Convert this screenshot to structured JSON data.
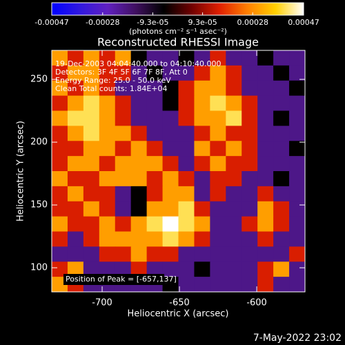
{
  "chart_data": {
    "type": "heatmap",
    "title": "Reconstructed RHESSI Image",
    "x_label": "Heliocentric X (arcsec)",
    "y_label": "Heliocentric Y (arcsec)",
    "xlim": [
      -732.6,
      -568.8
    ],
    "ylim": [
      80.8,
      273.1
    ],
    "xticks": [
      -700,
      -650,
      -600
    ],
    "yticks": [
      100,
      150,
      200,
      250
    ],
    "colorbar": {
      "label": "(photons cm⁻² s⁻¹ asec⁻²)",
      "clim": [
        -0.00047,
        0.00047
      ],
      "ticks": [
        -0.00047,
        -0.00028,
        {
          "value": -9.3e-05,
          "label": "-9.3e-05"
        },
        {
          "value": 9.3e-05,
          "label": "9.3e-05"
        },
        0.00028,
        0.00047
      ]
    },
    "colormap": [
      "#0000ff",
      "#3018e0",
      "#6020c0",
      "#401060",
      "#000000",
      "#700000",
      "#e02000",
      "#ff8000",
      "#ffd000",
      "#ffffff"
    ],
    "annotations": [
      "19-Dec-2003 04:04:40.000 to 04:10:40.000",
      "Detectors: 3F 4F 5F 6F 7F 8F, Att 0",
      "Energy Range: 25.0 - 50.0 keV",
      "Clean     Total counts: 1.84E+04"
    ],
    "peak_label": "Position of Peak = [-657,137]",
    "footer": "7-May-2022 23:02",
    "z": [
      [
        0.0003,
        0.00015,
        0.0003,
        0.00015,
        0.0003,
        -5e-05,
        -0.0002,
        -0.0002,
        -5e-05,
        -0.0002,
        0.00015,
        -0.0002,
        -0.0002,
        -5e-05,
        -0.0002,
        -0.0002
      ],
      [
        0.00015,
        0.0003,
        0.0003,
        0.00015,
        0.00015,
        -0.0002,
        -5e-05,
        -0.0002,
        -0.0002,
        0.00015,
        0.0003,
        0.00015,
        -0.0002,
        -0.0002,
        -5e-05,
        -0.0002
      ],
      [
        0.0003,
        0.00015,
        0.0003,
        0.00015,
        -0.0002,
        -0.0002,
        -0.0002,
        -5e-05,
        0.00015,
        0.0003,
        0.0003,
        0.00015,
        -0.0002,
        -0.0002,
        -0.0002,
        -5e-05
      ],
      [
        0.00015,
        0.0003,
        0.0004,
        0.0003,
        0.00015,
        -0.0002,
        -0.0002,
        -5e-05,
        0.00015,
        0.0003,
        0.0004,
        0.0003,
        0.00015,
        -0.0002,
        -0.0002,
        -0.0002
      ],
      [
        0.0003,
        0.0004,
        0.0004,
        0.0003,
        0.00015,
        -0.0002,
        -0.0002,
        -0.0002,
        0.00015,
        0.0003,
        0.0003,
        0.0004,
        0.00015,
        -0.0002,
        -5e-05,
        -0.0002
      ],
      [
        0.00015,
        0.0003,
        0.0004,
        0.0003,
        0.0003,
        0.00015,
        -0.0002,
        -0.0002,
        -0.0002,
        0.00015,
        0.0003,
        0.00015,
        0.00015,
        -0.0002,
        -0.0002,
        -0.0002
      ],
      [
        0.00015,
        0.00015,
        0.0003,
        0.0003,
        0.00015,
        0.0003,
        0.00015,
        -0.0002,
        -0.0002,
        0.0003,
        0.00015,
        0.0003,
        0.00015,
        -0.0002,
        -0.0002,
        -5e-05
      ],
      [
        0.00015,
        0.0003,
        0.0003,
        0.00015,
        0.0003,
        0.0003,
        0.0003,
        0.00015,
        -0.0002,
        0.00015,
        0.0003,
        0.00015,
        0.00015,
        -0.0002,
        -0.0002,
        -0.0002
      ],
      [
        0.0003,
        0.00015,
        0.00015,
        0.0003,
        0.0003,
        0.0003,
        0.00015,
        0.0003,
        0.00015,
        -0.0002,
        0.00015,
        0.00015,
        -0.0002,
        -0.0002,
        -5e-05,
        -0.0002
      ],
      [
        0.00015,
        0.0003,
        0.00015,
        0.00015,
        -0.0002,
        -5e-05,
        0.00015,
        0.0003,
        0.0003,
        -0.0002,
        0.00015,
        -0.0002,
        -0.0002,
        0.00015,
        -0.0002,
        -0.0002
      ],
      [
        0.00015,
        0.00015,
        0.0003,
        0.00015,
        -0.0002,
        -5e-05,
        0.0003,
        0.0003,
        0.0004,
        0.00015,
        -0.0002,
        -0.0002,
        -0.0002,
        0.0003,
        0.00015,
        -0.0002
      ],
      [
        0.0003,
        0.00015,
        0.00015,
        0.0003,
        0.00015,
        0.0003,
        0.0004,
        0.00047,
        0.0004,
        0.0003,
        -0.0002,
        -0.0002,
        0.00015,
        0.0003,
        0.00015,
        -0.0002
      ],
      [
        0.00015,
        -0.0002,
        0.00015,
        0.0003,
        0.0003,
        0.0003,
        0.0003,
        0.0004,
        0.0003,
        0.00015,
        -0.0002,
        -0.0002,
        -0.0002,
        0.00015,
        -0.0002,
        -0.0002
      ],
      [
        -0.0002,
        -0.0002,
        -0.0002,
        0.00015,
        0.00015,
        0.0003,
        0.00015,
        0.00015,
        -0.0002,
        -0.0002,
        -0.0002,
        -0.0002,
        -0.0002,
        -0.0002,
        -0.0002,
        0.00015
      ],
      [
        0.00015,
        0.0003,
        -0.0002,
        -0.0002,
        -0.0002,
        0.00015,
        -0.0002,
        -0.0002,
        -0.0002,
        -5e-05,
        -0.0002,
        -0.0002,
        -0.0002,
        0.00015,
        0.0003,
        -0.0002
      ],
      [
        0.0003,
        0.00015,
        -0.0002,
        -0.0002,
        -0.0002,
        -0.0002,
        -0.0002,
        -5e-05,
        -0.0002,
        -0.0002,
        -0.0002,
        -0.0002,
        -0.0002,
        0.00015,
        -0.0002,
        -0.0002
      ]
    ]
  }
}
